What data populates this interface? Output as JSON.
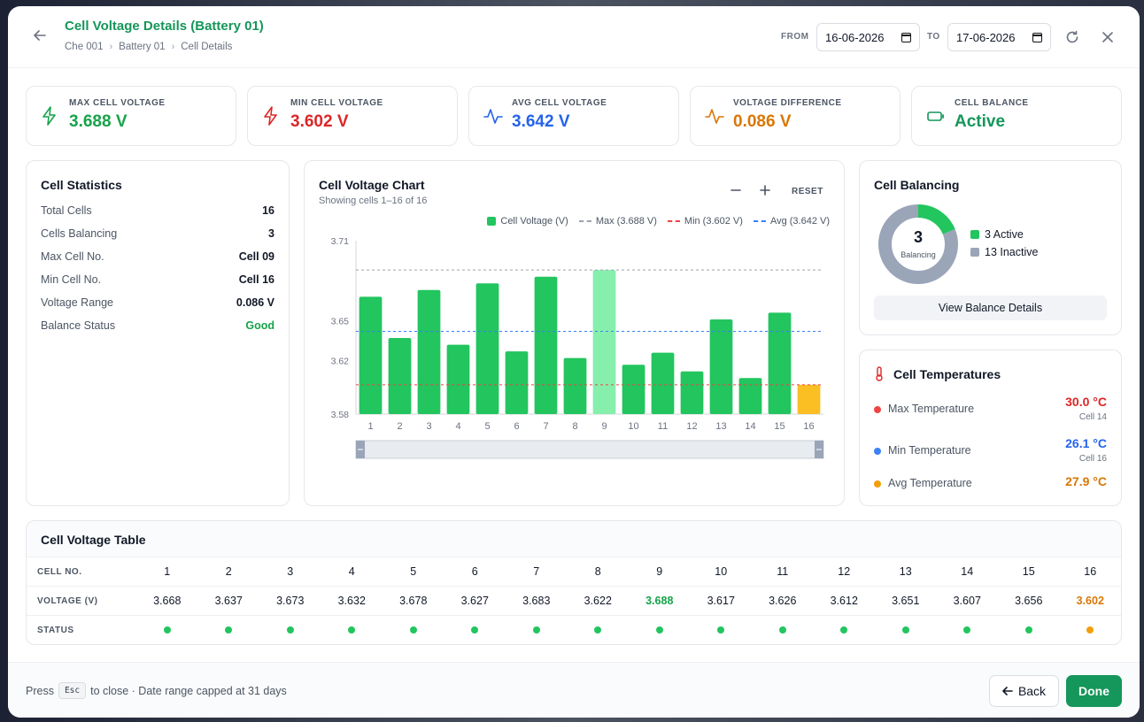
{
  "header": {
    "title": "Cell Voltage Details (Battery 01)",
    "breadcrumb": [
      "Che 001",
      "Battery 01",
      "Cell Details"
    ],
    "from_label": "FROM",
    "from_date": "16-06-2026",
    "to_label": "TO",
    "to_date": "17-06-2026"
  },
  "kpis": [
    {
      "label": "MAX CELL VOLTAGE",
      "value": "3.688 V",
      "color": "#16a34a",
      "icon": "bolt-icon"
    },
    {
      "label": "MIN CELL VOLTAGE",
      "value": "3.602 V",
      "color": "#dc2626",
      "icon": "bolt-icon"
    },
    {
      "label": "AVG CELL VOLTAGE",
      "value": "3.642 V",
      "color": "#2563eb",
      "icon": "activity-icon"
    },
    {
      "label": "VOLTAGE DIFFERENCE",
      "value": "0.086 V",
      "color": "#d97706",
      "icon": "activity-icon"
    },
    {
      "label": "CELL BALANCE",
      "value": "Active",
      "color": "#15965a",
      "icon": "battery-icon"
    }
  ],
  "stats": {
    "title": "Cell Statistics",
    "rows": [
      {
        "label": "Total Cells",
        "value": "16"
      },
      {
        "label": "Cells Balancing",
        "value": "3"
      },
      {
        "label": "Max Cell No.",
        "value": "Cell 09"
      },
      {
        "label": "Min Cell No.",
        "value": "Cell 16"
      },
      {
        "label": "Voltage Range",
        "value": "0.086 V"
      },
      {
        "label": "Balance Status",
        "value": "Good"
      }
    ]
  },
  "chart": {
    "title": "Cell Voltage Chart",
    "subtitle": "Showing cells 1–16 of 16",
    "reset_label": "RESET",
    "legend": {
      "bars": "Cell Voltage (V)",
      "max": "Max (3.688 V)",
      "min": "Min (3.602 V)",
      "avg": "Avg (3.642 V)"
    }
  },
  "chart_data": {
    "type": "bar",
    "title": "Cell Voltage Chart",
    "categories": [
      "1",
      "2",
      "3",
      "4",
      "5",
      "6",
      "7",
      "8",
      "9",
      "10",
      "11",
      "12",
      "13",
      "14",
      "15",
      "16"
    ],
    "values": [
      3.668,
      3.637,
      3.673,
      3.632,
      3.678,
      3.627,
      3.683,
      3.622,
      3.688,
      3.617,
      3.626,
      3.612,
      3.651,
      3.607,
      3.656,
      3.602
    ],
    "ylim": [
      3.58,
      3.71
    ],
    "yticks": [
      "3.71",
      "3.65",
      "3.62",
      "3.58"
    ],
    "ytick_values": [
      3.71,
      3.65,
      3.62,
      3.58
    ],
    "max": 3.688,
    "min": 3.602,
    "avg": 3.642,
    "colors": {
      "bar": "#22c55e",
      "max_bar": "#86efac",
      "min_bar": "#fbbf24",
      "max_line": "#9ca3af",
      "min_line": "#ef4444",
      "avg_line": "#3b82f6"
    }
  },
  "balancing": {
    "title": "Cell Balancing",
    "center_value": "3",
    "center_label": "Balancing",
    "active": 3,
    "inactive": 13,
    "active_label": "3 Active",
    "inactive_label": "13 Inactive",
    "button": "View Balance Details",
    "colors": {
      "active": "#22c55e",
      "inactive": "#9aa5b8"
    }
  },
  "temps": {
    "title": "Cell Temperatures",
    "rows": [
      {
        "label": "Max Temperature",
        "value": "30.0 °C",
        "sub": "Cell 14",
        "color": "#dc2626",
        "dot": "#ef4444"
      },
      {
        "label": "Min Temperature",
        "value": "26.1 °C",
        "sub": "Cell 16",
        "color": "#2563eb",
        "dot": "#3b82f6"
      },
      {
        "label": "Avg Temperature",
        "value": "27.9 °C",
        "sub": "",
        "color": "#d97706",
        "dot": "#f59e0b"
      }
    ]
  },
  "table": {
    "title": "Cell Voltage Table",
    "row_labels": [
      "CELL NO.",
      "VOLTAGE (V)",
      "STATUS"
    ],
    "cells": [
      "1",
      "2",
      "3",
      "4",
      "5",
      "6",
      "7",
      "8",
      "9",
      "10",
      "11",
      "12",
      "13",
      "14",
      "15",
      "16"
    ],
    "voltages": [
      "3.668",
      "3.637",
      "3.673",
      "3.632",
      "3.678",
      "3.627",
      "3.683",
      "3.622",
      "3.688",
      "3.617",
      "3.626",
      "3.612",
      "3.651",
      "3.607",
      "3.656",
      "3.602"
    ],
    "status": [
      "ok",
      "ok",
      "ok",
      "ok",
      "ok",
      "ok",
      "ok",
      "ok",
      "ok",
      "ok",
      "ok",
      "ok",
      "ok",
      "ok",
      "ok",
      "warn"
    ]
  },
  "footer": {
    "press": "Press",
    "key": "Esc",
    "note": "to close · Date range capped at 31 days",
    "back": "Back",
    "done": "Done"
  }
}
